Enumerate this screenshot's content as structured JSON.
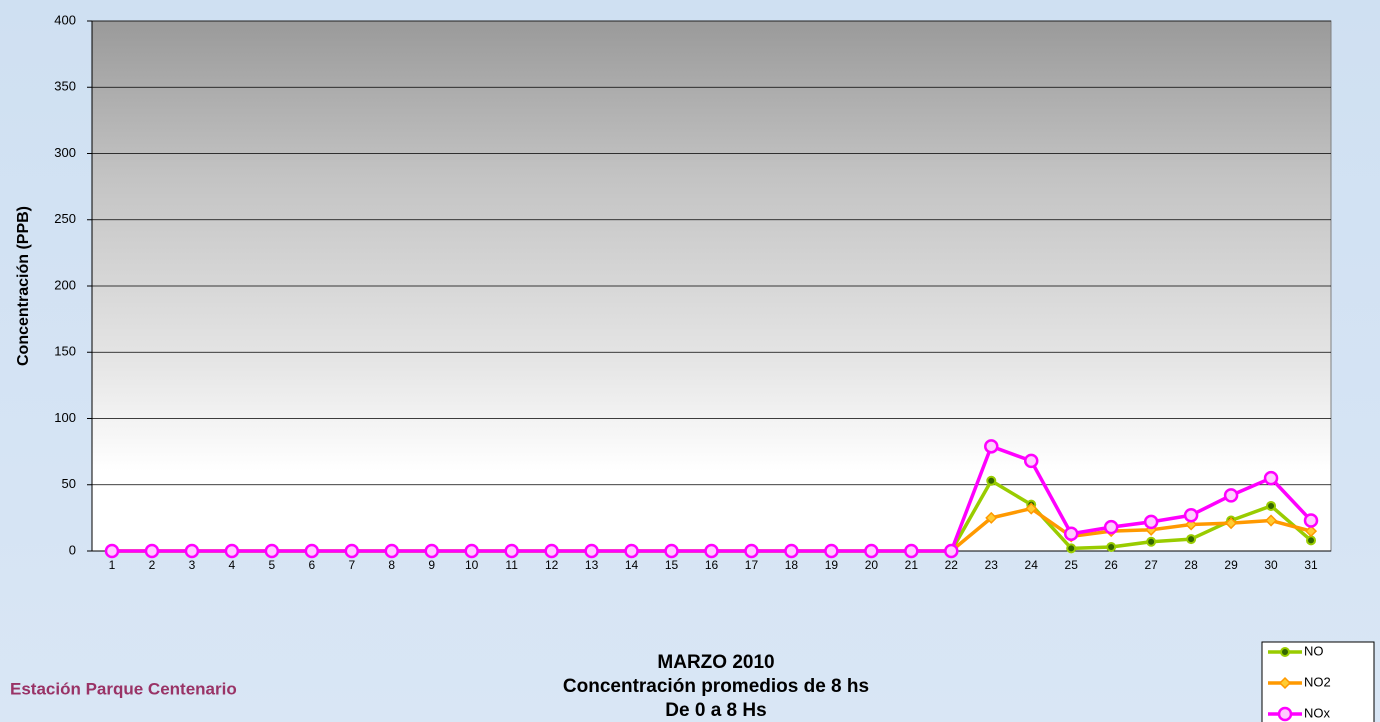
{
  "chart_data": {
    "type": "line",
    "title": "MARZO 2010",
    "subtitle": "Concentración promedios de 8 hs",
    "subtitle2": "De 0 a 8 Hs",
    "annotation": "Estación Parque Centenario",
    "ylabel": "Concentración  (PPB)",
    "categories": [
      "1",
      "2",
      "3",
      "4",
      "5",
      "6",
      "7",
      "8",
      "9",
      "10",
      "11",
      "12",
      "13",
      "14",
      "15",
      "16",
      "17",
      "18",
      "19",
      "20",
      "21",
      "22",
      "23",
      "24",
      "25",
      "26",
      "27",
      "28",
      "29",
      "30",
      "31"
    ],
    "series": [
      {
        "name": "NO",
        "color": "#99cc00",
        "marker": "circle",
        "values": [
          0,
          0,
          0,
          0,
          0,
          0,
          0,
          0,
          0,
          0,
          0,
          0,
          0,
          0,
          0,
          0,
          0,
          0,
          0,
          0,
          0,
          0,
          53,
          35,
          2,
          3,
          7,
          9,
          23,
          34,
          8
        ]
      },
      {
        "name": "NO2",
        "color": "#ff9900",
        "marker": "diamond",
        "values": [
          0,
          0,
          0,
          0,
          0,
          0,
          0,
          0,
          0,
          0,
          0,
          0,
          0,
          0,
          0,
          0,
          0,
          0,
          0,
          0,
          0,
          0,
          25,
          32,
          11,
          15,
          16,
          20,
          21,
          23,
          15
        ]
      },
      {
        "name": "NOx",
        "color": "#ff00ff",
        "marker": "ring",
        "values": [
          0,
          0,
          0,
          0,
          0,
          0,
          0,
          0,
          0,
          0,
          0,
          0,
          0,
          0,
          0,
          0,
          0,
          0,
          0,
          0,
          0,
          0,
          79,
          68,
          13,
          18,
          22,
          27,
          42,
          55,
          23
        ]
      }
    ],
    "ylim": [
      0,
      400
    ],
    "yticks": [
      0,
      50,
      100,
      150,
      200,
      250,
      300,
      350,
      400
    ],
    "grid": true,
    "legend": "bottom-right"
  }
}
